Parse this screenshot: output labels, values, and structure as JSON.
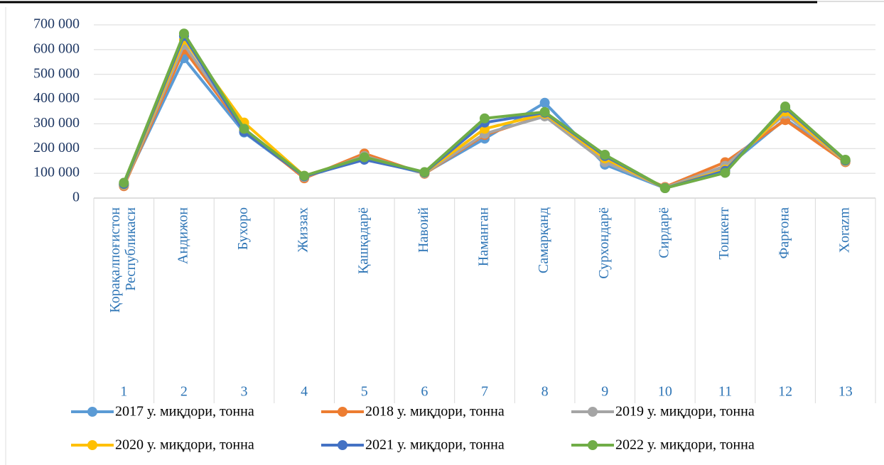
{
  "chart_data": {
    "type": "line",
    "categories": [
      "1",
      "2",
      "3",
      "4",
      "5",
      "6",
      "7",
      "8",
      "9",
      "10",
      "11",
      "12",
      "13"
    ],
    "category_names": [
      [
        "Қорақалпоғистон",
        "Республикаси"
      ],
      "Андижон",
      "Бухоро",
      "Жиззах",
      "Қашқадарё",
      "Навоий",
      "Наманган",
      "Самарқанд",
      "Сурхондарё",
      "Сирдарё",
      "Тошкент",
      "Фарғона",
      "Xorazm"
    ],
    "ylim": [
      0,
      700000
    ],
    "yticks": [
      0,
      {
        "value": 100000,
        "label": "100 000"
      },
      {
        "value": 200000,
        "label": "200 000"
      },
      {
        "value": 300000,
        "label": "300 000"
      },
      {
        "value": 400000,
        "label": "400 000"
      },
      {
        "value": 500000,
        "label": "500 000"
      },
      {
        "value": 600000,
        "label": "600 000"
      },
      {
        "value": 700000,
        "label": "700 000"
      }
    ],
    "grid": true,
    "legend": "bottom",
    "series": [
      {
        "name": "2017 у. миқдори, тонна",
        "color": "#5b9bd5",
        "values": [
          55000,
          565000,
          265000,
          85000,
          160000,
          100000,
          240000,
          385000,
          135000,
          40000,
          120000,
          320000,
          150000
        ]
      },
      {
        "name": "2018 у. миқдори, тонна",
        "color": "#ed7d31",
        "values": [
          48000,
          600000,
          275000,
          80000,
          180000,
          98000,
          255000,
          335000,
          150000,
          45000,
          145000,
          315000,
          145000
        ]
      },
      {
        "name": "2019 у. миқдори, тонна",
        "color": "#a5a5a5",
        "values": [
          52000,
          620000,
          280000,
          85000,
          170000,
          100000,
          260000,
          330000,
          145000,
          42000,
          130000,
          340000,
          148000
        ]
      },
      {
        "name": "2020 у. миқдори, тонна",
        "color": "#ffc000",
        "values": [
          55000,
          640000,
          305000,
          90000,
          165000,
          102000,
          280000,
          340000,
          160000,
          40000,
          115000,
          350000,
          150000
        ]
      },
      {
        "name": "2021 у. миқдори, тонна",
        "color": "#4472c4",
        "values": [
          57000,
          655000,
          268000,
          88000,
          155000,
          103000,
          305000,
          345000,
          170000,
          40000,
          110000,
          365000,
          152000
        ]
      },
      {
        "name": "2022 у. миқдори, тонна",
        "color": "#70ad47",
        "values": [
          62000,
          665000,
          280000,
          90000,
          165000,
          105000,
          322000,
          348000,
          175000,
          40000,
          102000,
          370000,
          155000
        ]
      }
    ]
  }
}
